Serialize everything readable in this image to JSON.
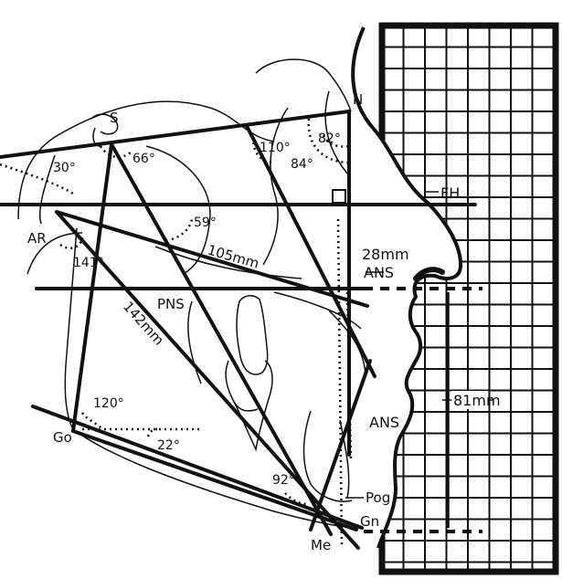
{
  "labels": {
    "s": "S",
    "n": "N",
    "fh": "FH",
    "ar": "AR",
    "ans_upper": "ANS",
    "ans_lower": "ANS",
    "pns": "PNS",
    "go": "Go",
    "pog": "Pog",
    "gn": "Gn",
    "me": "Me"
  },
  "measurements": {
    "angle_30": "30°",
    "angle_66": "66°",
    "angle_110": "110°",
    "angle_82": "82°",
    "angle_84": "84°",
    "angle_59": "59°",
    "angle_141": "141°",
    "angle_120": "120°",
    "angle_22": "22°",
    "angle_92": "92°",
    "dist_105": "105mm",
    "dist_142": "142mm",
    "dist_28": "28mm",
    "dist_81": "81mm"
  },
  "colors": {
    "ink": "#111111",
    "background": "#ffffff"
  }
}
